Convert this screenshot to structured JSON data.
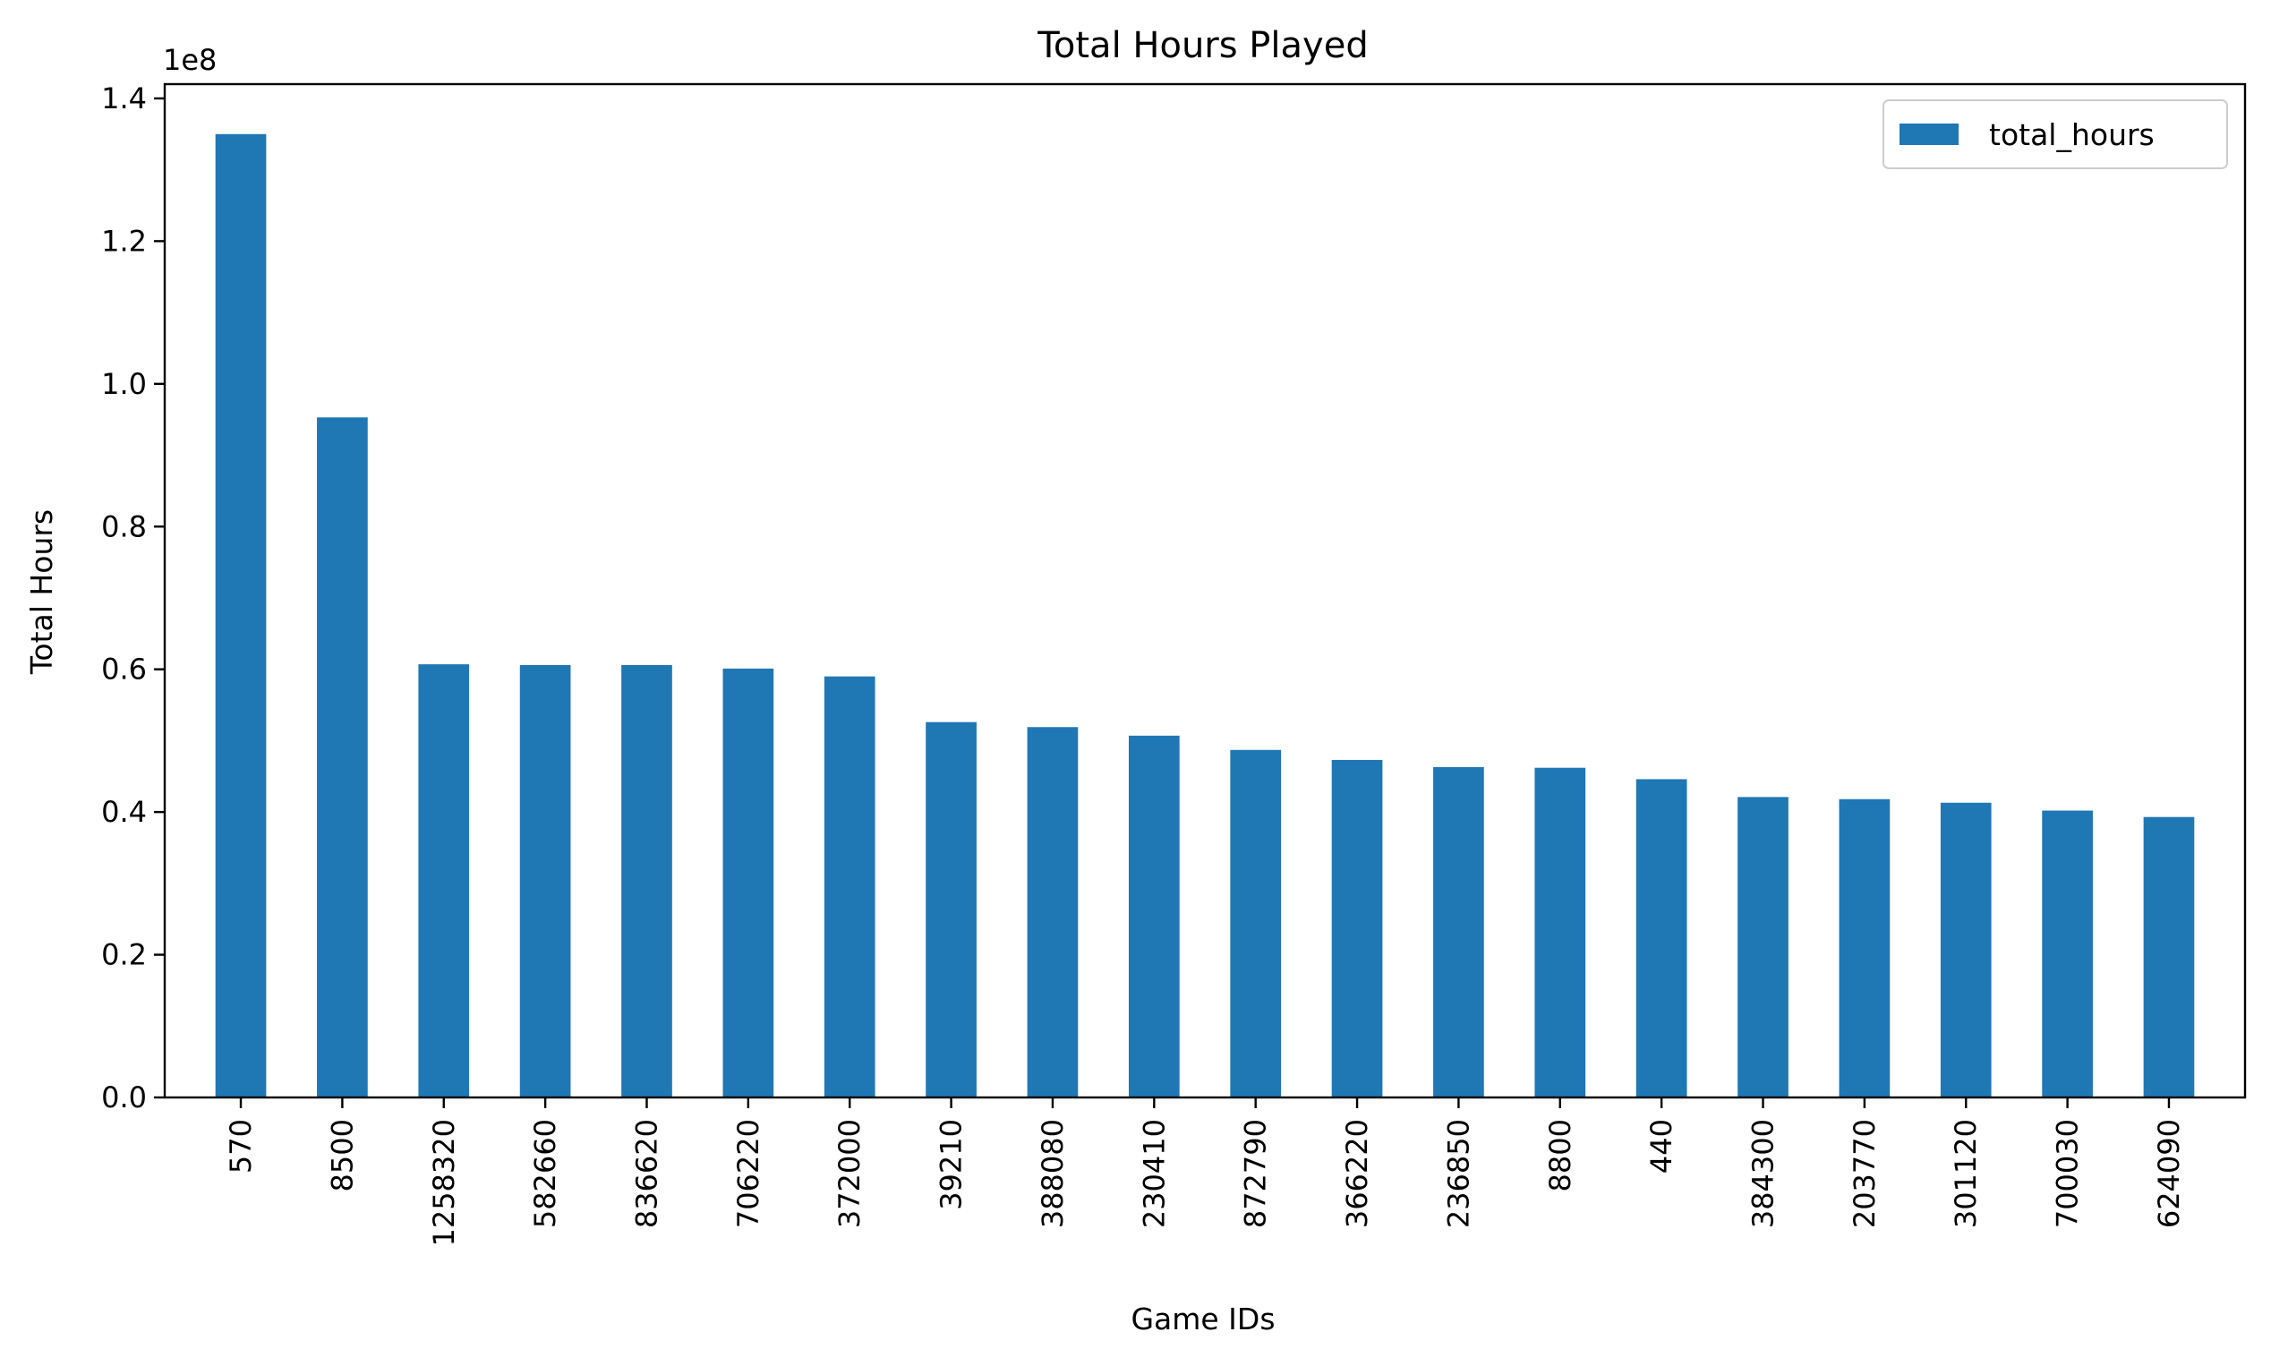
{
  "chart_data": {
    "type": "bar",
    "title": "Total Hours Played",
    "xlabel": "Game IDs",
    "ylabel": "Total Hours",
    "y_offset_label": "1e8",
    "y_scale": 100000000,
    "ylim": [
      0,
      142000000
    ],
    "yticks": [
      0,
      20000000,
      40000000,
      60000000,
      80000000,
      100000000,
      120000000,
      140000000
    ],
    "ytick_labels": [
      "0.0",
      "0.2",
      "0.4",
      "0.6",
      "0.8",
      "1.0",
      "1.2",
      "1.4"
    ],
    "categories": [
      "570",
      "8500",
      "1258320",
      "582660",
      "836620",
      "706220",
      "372000",
      "39210",
      "388080",
      "230410",
      "872790",
      "366220",
      "236850",
      "8800",
      "440",
      "384300",
      "203770",
      "301120",
      "700030",
      "624090"
    ],
    "series": [
      {
        "name": "total_hours",
        "color": "#1f77b4",
        "values": [
          135000000,
          95300000,
          60700000,
          60600000,
          60600000,
          60100000,
          59000000,
          52600000,
          51900000,
          50700000,
          48700000,
          47300000,
          46300000,
          46200000,
          44600000,
          42100000,
          41800000,
          41300000,
          40200000,
          39300000
        ]
      }
    ],
    "legend_position": "upper right",
    "grid": false
  }
}
